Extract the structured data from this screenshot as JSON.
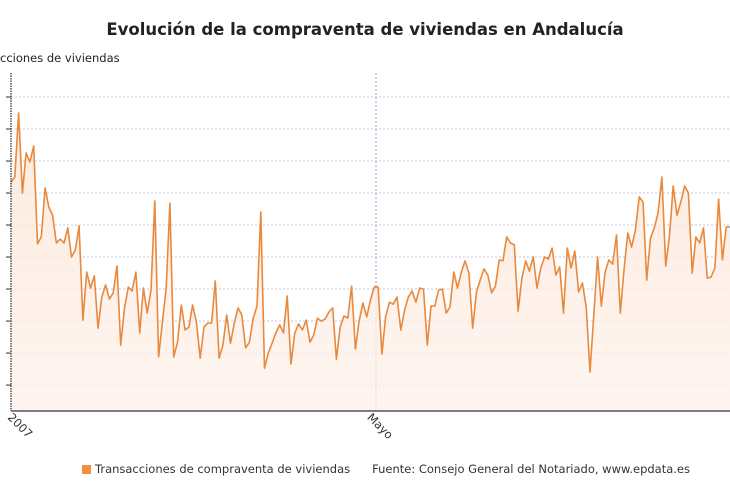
{
  "chart_data": {
    "type": "area",
    "title": "Evolución de la compraventa de viviendas en Andalucía",
    "ylabel": "cciones de viviendas",
    "xticks": [
      {
        "index": 0,
        "label": "2007"
      },
      {
        "index": 95,
        "label": "Mayo"
      }
    ],
    "ylim": [
      0.19,
      10.75
    ],
    "grid": true,
    "legend": "bottom",
    "colors": {
      "line": "#e8893e",
      "fill": "#fbe3d4",
      "grid": "#c9c3dc",
      "marker_line": "#a98fd0"
    },
    "series": [
      {
        "name": "Transacciones de compraventa de viviendas",
        "values": [
          7.34,
          7.5,
          9.5,
          7.0,
          8.25,
          7.97,
          8.47,
          5.41,
          5.63,
          7.16,
          6.56,
          6.31,
          5.44,
          5.56,
          5.44,
          5.91,
          5.0,
          5.22,
          5.97,
          3.03,
          4.53,
          4.03,
          4.41,
          2.78,
          3.75,
          4.13,
          3.69,
          3.88,
          4.72,
          2.25,
          3.41,
          4.06,
          3.94,
          4.53,
          2.63,
          4.03,
          3.25,
          3.97,
          6.75,
          1.88,
          2.97,
          4.03,
          6.69,
          1.88,
          2.34,
          3.5,
          2.72,
          2.81,
          3.5,
          2.97,
          1.84,
          2.81,
          2.94,
          2.94,
          4.25,
          1.84,
          2.25,
          3.19,
          2.31,
          2.94,
          3.41,
          3.19,
          2.16,
          2.34,
          3.09,
          3.47,
          6.41,
          1.53,
          2.0,
          2.31,
          2.63,
          2.88,
          2.63,
          3.78,
          1.66,
          2.63,
          2.91,
          2.72,
          3.03,
          2.34,
          2.56,
          3.09,
          3.0,
          3.06,
          3.28,
          3.41,
          1.81,
          2.81,
          3.16,
          3.09,
          4.09,
          2.13,
          3.0,
          3.56,
          3.13,
          3.66,
          4.06,
          4.06,
          1.97,
          3.13,
          3.59,
          3.53,
          3.75,
          2.72,
          3.34,
          3.75,
          3.94,
          3.59,
          4.03,
          4.0,
          2.25,
          3.47,
          3.47,
          3.97,
          4.0,
          3.25,
          3.44,
          4.53,
          4.03,
          4.53,
          4.88,
          4.5,
          2.78,
          3.91,
          4.28,
          4.63,
          4.44,
          3.88,
          4.09,
          4.91,
          4.88,
          5.63,
          5.44,
          5.38,
          3.31,
          4.34,
          4.88,
          4.56,
          5.0,
          4.03,
          4.66,
          5.0,
          4.94,
          5.28,
          4.44,
          4.69,
          3.25,
          5.28,
          4.66,
          5.19,
          3.91,
          4.19,
          3.44,
          1.41,
          3.19,
          5.0,
          3.47,
          4.53,
          4.91,
          4.78,
          5.69,
          3.25,
          4.6,
          5.75,
          5.31,
          5.84,
          6.88,
          6.72,
          4.28,
          5.59,
          5.91,
          6.38,
          7.5,
          4.72,
          5.66,
          7.22,
          6.31,
          6.72,
          7.22,
          7.0,
          4.5,
          5.63,
          5.44,
          5.91,
          4.34,
          4.38,
          4.66,
          6.81,
          4.91,
          5.94,
          5.94
        ]
      }
    ],
    "source": "Fuente: Consejo General del Notariado, www.epdata.es"
  }
}
